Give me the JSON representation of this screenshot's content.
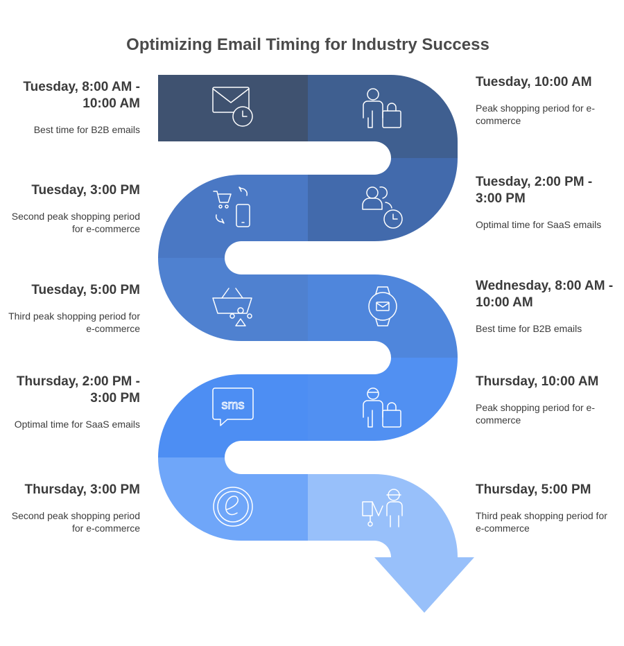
{
  "title": "Optimizing Email Timing for Industry Success",
  "steps": [
    {
      "heading": "Tuesday, 8:00 AM - 10:00 AM",
      "description": "Best time for B2B emails",
      "icon": "email-clock-icon",
      "color": "#3f5270"
    },
    {
      "heading": "Tuesday, 10:00 AM",
      "description": "Peak shopping period for e-commerce",
      "icon": "person-shopping-bag-icon",
      "color": "#3f5f90"
    },
    {
      "heading": "Tuesday, 2:00 PM - 3:00 PM",
      "description": "Optimal time for SaaS emails",
      "icon": "users-clock-icon",
      "color": "#426aac"
    },
    {
      "heading": "Tuesday, 3:00 PM",
      "description": "Second peak shopping period for e-commerce",
      "icon": "cart-phone-icon",
      "color": "#4a78c4"
    },
    {
      "heading": "Tuesday, 5:00 PM",
      "description": "Third peak shopping period for e-commerce",
      "icon": "basket-icon",
      "color": "#4f81d0"
    },
    {
      "heading": "Wednesday, 8:00 AM - 10:00 AM",
      "description": "Best time for B2B emails",
      "icon": "smartwatch-mail-icon",
      "color": "#4f86dc"
    },
    {
      "heading": "Thursday, 2:00 PM - 3:00 PM",
      "description": "Optimal time for SaaS emails",
      "icon": "sms-bubble-icon",
      "color": "#4d8ef3"
    },
    {
      "heading": "Thursday, 10:00 AM",
      "description": "Peak shopping period for e-commerce",
      "icon": "person-shopping-bag-icon",
      "color": "#5190f2"
    },
    {
      "heading": "Thursday, 3:00 PM",
      "description": "Second peak shopping period for e-commerce",
      "icon": "e-commerce-icon",
      "color": "#6fa6f9"
    },
    {
      "heading": "Thursday, 5:00 PM",
      "description": "Third peak shopping period for e-commerce",
      "icon": "shopper-cart-icon",
      "color": "#98c0fa"
    }
  ]
}
